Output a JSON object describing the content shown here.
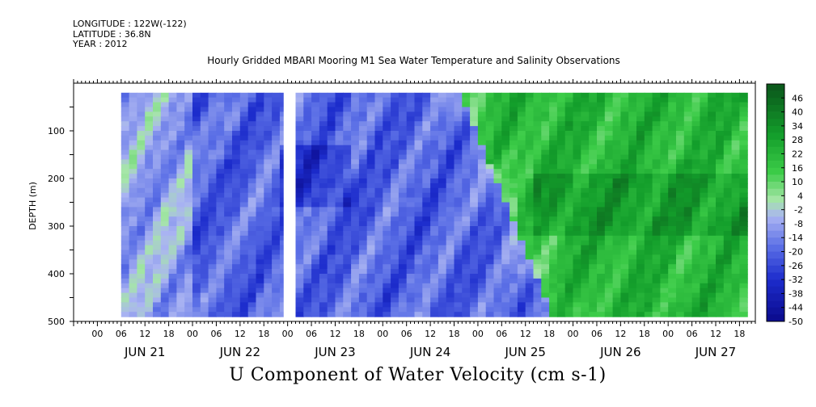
{
  "meta": {
    "longitude": "LONGITUDE : 122W(-122)",
    "latitude": "LATITUDE : 36.8N",
    "year": "YEAR : 2012"
  },
  "chart_data": {
    "type": "heatmap",
    "title": "Hourly Gridded MBARI Mooring M1 Sea Water Temperature and Salinity Observations",
    "xlabel": "",
    "ylabel": "DEPTH (m)",
    "variable_label": "U Component of Water Velocity (cm s-1)",
    "ylim": [
      500,
      0
    ],
    "y_ticks": [
      100,
      200,
      300,
      400,
      500
    ],
    "y_tick_labels": [
      "100",
      "200",
      "300",
      "400",
      "500"
    ],
    "x_range_hours": [
      "2012-06-20 18:00",
      "2012-06-27 22:00"
    ],
    "x_hour_labels": [
      "00",
      "06",
      "12",
      "18",
      "00",
      "06",
      "12",
      "18",
      "00",
      "06",
      "12",
      "18",
      "00",
      "06",
      "12",
      "18",
      "00",
      "06",
      "12",
      "18",
      "00",
      "06",
      "12",
      "18",
      "00",
      "06",
      "12",
      "18"
    ],
    "x_day_labels": [
      "JUN 21",
      "JUN 22",
      "JUN 23",
      "JUN 24",
      "JUN 25",
      "JUN 26",
      "JUN 27"
    ],
    "colorbar": {
      "labels": [
        "46",
        "40",
        "34",
        "28",
        "22",
        "16",
        "10",
        "4",
        "-2",
        "-8",
        "-14",
        "-20",
        "-26",
        "-32",
        "-38",
        "-44",
        "-50"
      ],
      "min": -50,
      "max": 52,
      "step": 3
    },
    "data_gap": {
      "start": "2012-06-22 23:00",
      "end": "2012-06-23 01:00"
    },
    "regimes": [
      {
        "period": "JUN 21 - JUN 24",
        "pattern": "negative velocities (westward), approx -10 to -30 cm/s",
        "color": "blue"
      },
      {
        "period": "JUN 25 - JUN 27",
        "pattern": "positive velocities (eastward), approx 10 to 30 cm/s",
        "color": "green"
      }
    ]
  },
  "colors": {
    "neg_strong": "#1c2ccc",
    "neg_mid": "#5b6fe6",
    "neg_light": "#aab4f2",
    "pos_light": "#a6e6a8",
    "pos_mid": "#3ccc48",
    "pos_strong": "#139e2b"
  }
}
